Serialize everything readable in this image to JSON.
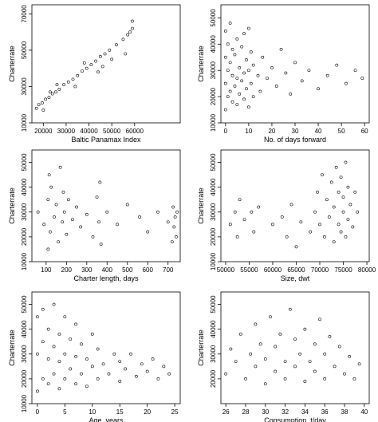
{
  "chart_data": [
    {
      "type": "scatter",
      "xlabel": "Baltic Panamax Index",
      "ylabel": "Charterrate",
      "xlim": [
        15000,
        80000
      ],
      "ylim": [
        10000,
        75000
      ],
      "xticks": [
        20000,
        30000,
        40000,
        50000,
        60000
      ],
      "yticks": [
        10000,
        30000,
        50000,
        70000
      ],
      "xtick_labels": [
        "20000",
        "30000",
        "40000",
        "50000",
        "60000"
      ],
      "ytick_labels": [
        "10000",
        "30000",
        "50000",
        "70000"
      ],
      "points": [
        [
          17000,
          18000
        ],
        [
          18000,
          20000
        ],
        [
          19500,
          21000
        ],
        [
          21000,
          23000
        ],
        [
          22500,
          24000
        ],
        [
          24000,
          26000
        ],
        [
          25500,
          27000
        ],
        [
          27000,
          28500
        ],
        [
          29000,
          31000
        ],
        [
          31000,
          32500
        ],
        [
          33000,
          34000
        ],
        [
          35000,
          36000
        ],
        [
          37000,
          38500
        ],
        [
          39000,
          40000
        ],
        [
          41000,
          42000
        ],
        [
          43000,
          44000
        ],
        [
          45000,
          46500
        ],
        [
          47000,
          48000
        ],
        [
          49000,
          50000
        ],
        [
          52000,
          53000
        ],
        [
          55000,
          56000
        ],
        [
          57000,
          58500
        ],
        [
          58000,
          60000
        ],
        [
          59000,
          62000
        ],
        [
          20000,
          17000
        ],
        [
          26000,
          31000
        ],
        [
          34000,
          30000
        ],
        [
          44000,
          38000
        ],
        [
          50000,
          45000
        ],
        [
          56000,
          48000
        ],
        [
          59000,
          66000
        ],
        [
          23000,
          27000
        ],
        [
          38000,
          43000
        ],
        [
          46000,
          41000
        ]
      ],
      "grid": false
    },
    {
      "type": "scatter",
      "xlabel": "No. of days forward",
      "ylabel": "Charterrate",
      "xlim": [
        -2,
        62
      ],
      "ylim": [
        10000,
        55000
      ],
      "xticks": [
        0,
        10,
        20,
        30,
        40,
        50,
        60
      ],
      "yticks": [
        10000,
        20000,
        30000,
        40000,
        50000
      ],
      "xtick_labels": [
        "0",
        "10",
        "20",
        "30",
        "40",
        "50",
        "60"
      ],
      "ytick_labels": [
        "10000",
        "20000",
        "30000",
        "40000",
        "50000"
      ],
      "points": [
        [
          0,
          15000
        ],
        [
          0,
          25000
        ],
        [
          0,
          35000
        ],
        [
          0,
          45000
        ],
        [
          1,
          20000
        ],
        [
          1,
          30000
        ],
        [
          1,
          40000
        ],
        [
          2,
          22000
        ],
        [
          2,
          33000
        ],
        [
          2,
          48000
        ],
        [
          3,
          18000
        ],
        [
          3,
          28000
        ],
        [
          3,
          38000
        ],
        [
          4,
          24000
        ],
        [
          4,
          36000
        ],
        [
          5,
          17000
        ],
        [
          5,
          27000
        ],
        [
          5,
          42000
        ],
        [
          6,
          21000
        ],
        [
          6,
          31000
        ],
        [
          7,
          26000
        ],
        [
          7,
          39000
        ],
        [
          8,
          19000
        ],
        [
          8,
          29000
        ],
        [
          8,
          44000
        ],
        [
          9,
          23000
        ],
        [
          9,
          34000
        ],
        [
          10,
          16000
        ],
        [
          10,
          30000
        ],
        [
          10,
          46000
        ],
        [
          11,
          25000
        ],
        [
          11,
          37000
        ],
        [
          12,
          20000
        ],
        [
          12,
          32000
        ],
        [
          14,
          28000
        ],
        [
          15,
          22000
        ],
        [
          16,
          35000
        ],
        [
          18,
          27000
        ],
        [
          20,
          31000
        ],
        [
          22,
          24000
        ],
        [
          24,
          38000
        ],
        [
          26,
          29000
        ],
        [
          28,
          21000
        ],
        [
          30,
          33000
        ],
        [
          33,
          26000
        ],
        [
          36,
          30000
        ],
        [
          40,
          23000
        ],
        [
          44,
          28000
        ],
        [
          48,
          32000
        ],
        [
          52,
          25000
        ],
        [
          56,
          30000
        ],
        [
          59,
          27000
        ]
      ],
      "grid": false
    },
    {
      "type": "scatter",
      "xlabel": "Charter length, days",
      "ylabel": "Charterrate",
      "xlim": [
        30,
        760
      ],
      "ylim": [
        10000,
        55000
      ],
      "xticks": [
        100,
        200,
        300,
        400,
        500,
        600,
        700
      ],
      "yticks": [
        10000,
        20000,
        30000,
        40000,
        50000
      ],
      "xtick_labels": [
        "100",
        "200",
        "300",
        "400",
        "500",
        "600",
        "700"
      ],
      "ytick_labels": [
        "10000",
        "20000",
        "30000",
        "40000",
        "50000"
      ],
      "points": [
        [
          60,
          30000
        ],
        [
          90,
          25000
        ],
        [
          110,
          15000
        ],
        [
          110,
          35000
        ],
        [
          115,
          45000
        ],
        [
          120,
          22000
        ],
        [
          125,
          40000
        ],
        [
          140,
          28000
        ],
        [
          150,
          33000
        ],
        [
          160,
          18000
        ],
        [
          170,
          48000
        ],
        [
          180,
          26000
        ],
        [
          185,
          38000
        ],
        [
          190,
          30000
        ],
        [
          200,
          21000
        ],
        [
          210,
          35000
        ],
        [
          230,
          27000
        ],
        [
          250,
          32000
        ],
        [
          270,
          24000
        ],
        [
          300,
          29000
        ],
        [
          330,
          20000
        ],
        [
          350,
          36000
        ],
        [
          360,
          26000
        ],
        [
          365,
          42000
        ],
        [
          370,
          17000
        ],
        [
          400,
          30000
        ],
        [
          450,
          25000
        ],
        [
          500,
          33000
        ],
        [
          560,
          28000
        ],
        [
          600,
          22000
        ],
        [
          650,
          30000
        ],
        [
          700,
          26000
        ],
        [
          720,
          18000
        ],
        [
          725,
          32000
        ],
        [
          730,
          24000
        ],
        [
          735,
          28000
        ],
        [
          740,
          20000
        ],
        [
          745,
          30000
        ]
      ],
      "grid": false
    },
    {
      "type": "scatter",
      "xlabel": "Size, dwt",
      "ylabel": "Charterrate",
      "xlim": [
        49000,
        80500
      ],
      "ylim": [
        10000,
        55000
      ],
      "xticks": [
        50000,
        55000,
        60000,
        65000,
        70000,
        75000,
        80000
      ],
      "yticks": [
        10000,
        20000,
        30000,
        40000,
        50000
      ],
      "xtick_labels": [
        "50000",
        "55000",
        "60000",
        "65000",
        "70000",
        "75000",
        "80000"
      ],
      "ytick_labels": [
        "10000",
        "20000",
        "30000",
        "40000",
        "50000"
      ],
      "points": [
        [
          51000,
          25000
        ],
        [
          52000,
          30000
        ],
        [
          52500,
          20000
        ],
        [
          53000,
          35000
        ],
        [
          54000,
          27000
        ],
        [
          55500,
          30000
        ],
        [
          56000,
          22000
        ],
        [
          57000,
          32000
        ],
        [
          60000,
          25000
        ],
        [
          62000,
          28000
        ],
        [
          63000,
          20000
        ],
        [
          64000,
          33000
        ],
        [
          65000,
          16000
        ],
        [
          66000,
          26000
        ],
        [
          68000,
          22000
        ],
        [
          69000,
          30000
        ],
        [
          69500,
          38000
        ],
        [
          70000,
          25000
        ],
        [
          70500,
          45000
        ],
        [
          71000,
          20000
        ],
        [
          71500,
          35000
        ],
        [
          72000,
          28000
        ],
        [
          72500,
          42000
        ],
        [
          73000,
          18000
        ],
        [
          73000,
          32000
        ],
        [
          73500,
          48000
        ],
        [
          74000,
          25000
        ],
        [
          74000,
          38000
        ],
        [
          74500,
          22000
        ],
        [
          74500,
          44000
        ],
        [
          75000,
          30000
        ],
        [
          75000,
          36000
        ],
        [
          75500,
          20000
        ],
        [
          75500,
          50000
        ],
        [
          76000,
          27000
        ],
        [
          76000,
          40000
        ],
        [
          76500,
          33000
        ],
        [
          77000,
          24000
        ],
        [
          77500,
          38000
        ],
        [
          78000,
          30000
        ]
      ],
      "grid": false
    },
    {
      "type": "scatter",
      "xlabel": "Age, years",
      "ylabel": "Charterrate",
      "xlim": [
        -1,
        26
      ],
      "ylim": [
        10000,
        55000
      ],
      "xticks": [
        0,
        5,
        10,
        15,
        20,
        25
      ],
      "yticks": [
        10000,
        20000,
        30000,
        40000,
        50000
      ],
      "xtick_labels": [
        "0",
        "5",
        "10",
        "15",
        "20",
        "25"
      ],
      "ytick_labels": [
        "10000",
        "20000",
        "30000",
        "40000",
        "50000"
      ],
      "points": [
        [
          0,
          15000
        ],
        [
          0,
          30000
        ],
        [
          0,
          45000
        ],
        [
          1,
          20000
        ],
        [
          1,
          35000
        ],
        [
          1,
          48000
        ],
        [
          2,
          18000
        ],
        [
          2,
          28000
        ],
        [
          2,
          40000
        ],
        [
          3,
          22000
        ],
        [
          3,
          33000
        ],
        [
          3,
          50000
        ],
        [
          4,
          16000
        ],
        [
          4,
          27000
        ],
        [
          4,
          38000
        ],
        [
          5,
          20000
        ],
        [
          5,
          30000
        ],
        [
          5,
          45000
        ],
        [
          6,
          24000
        ],
        [
          6,
          36000
        ],
        [
          7,
          18000
        ],
        [
          7,
          29000
        ],
        [
          7,
          42000
        ],
        [
          8,
          22000
        ],
        [
          8,
          34000
        ],
        [
          9,
          17000
        ],
        [
          9,
          28000
        ],
        [
          10,
          25000
        ],
        [
          10,
          38000
        ],
        [
          11,
          20000
        ],
        [
          11,
          32000
        ],
        [
          12,
          26000
        ],
        [
          13,
          22000
        ],
        [
          14,
          30000
        ],
        [
          15,
          19000
        ],
        [
          15,
          27000
        ],
        [
          16,
          24000
        ],
        [
          17,
          30000
        ],
        [
          18,
          21000
        ],
        [
          19,
          26000
        ],
        [
          20,
          23000
        ],
        [
          21,
          28000
        ],
        [
          22,
          20000
        ],
        [
          23,
          25000
        ],
        [
          24,
          22000
        ]
      ],
      "grid": false
    },
    {
      "type": "scatter",
      "xlabel": "Consumption, t/day",
      "ylabel": "Charterrate",
      "xlim": [
        25.5,
        40.5
      ],
      "ylim": [
        10000,
        55000
      ],
      "xticks": [
        26,
        28,
        30,
        32,
        34,
        36,
        38,
        40
      ],
      "yticks": [
        20000,
        30000,
        40000,
        50000
      ],
      "xtick_labels": [
        "26",
        "28",
        "30",
        "32",
        "34",
        "36",
        "38",
        "40"
      ],
      "ytick_labels": [
        "20000",
        "30000",
        "40000",
        "50000"
      ],
      "points": [
        [
          26,
          22000
        ],
        [
          26.5,
          32000
        ],
        [
          27,
          27000
        ],
        [
          27.5,
          38000
        ],
        [
          28,
          20000
        ],
        [
          28.5,
          30000
        ],
        [
          29,
          25000
        ],
        [
          29,
          42000
        ],
        [
          29.5,
          34000
        ],
        [
          30,
          18000
        ],
        [
          30,
          28000
        ],
        [
          30.5,
          45000
        ],
        [
          31,
          23000
        ],
        [
          31,
          33000
        ],
        [
          31.5,
          38000
        ],
        [
          32,
          20000
        ],
        [
          32,
          27000
        ],
        [
          32.5,
          48000
        ],
        [
          33,
          25000
        ],
        [
          33,
          36000
        ],
        [
          33.5,
          30000
        ],
        [
          34,
          19000
        ],
        [
          34,
          40000
        ],
        [
          34.5,
          27000
        ],
        [
          35,
          23000
        ],
        [
          35,
          34000
        ],
        [
          35.5,
          44000
        ],
        [
          36,
          20000
        ],
        [
          36,
          30000
        ],
        [
          36.5,
          37000
        ],
        [
          37,
          25000
        ],
        [
          37.5,
          33000
        ],
        [
          38,
          22000
        ],
        [
          38.5,
          29000
        ],
        [
          39,
          20000
        ],
        [
          39.5,
          26000
        ]
      ],
      "grid": false
    }
  ]
}
